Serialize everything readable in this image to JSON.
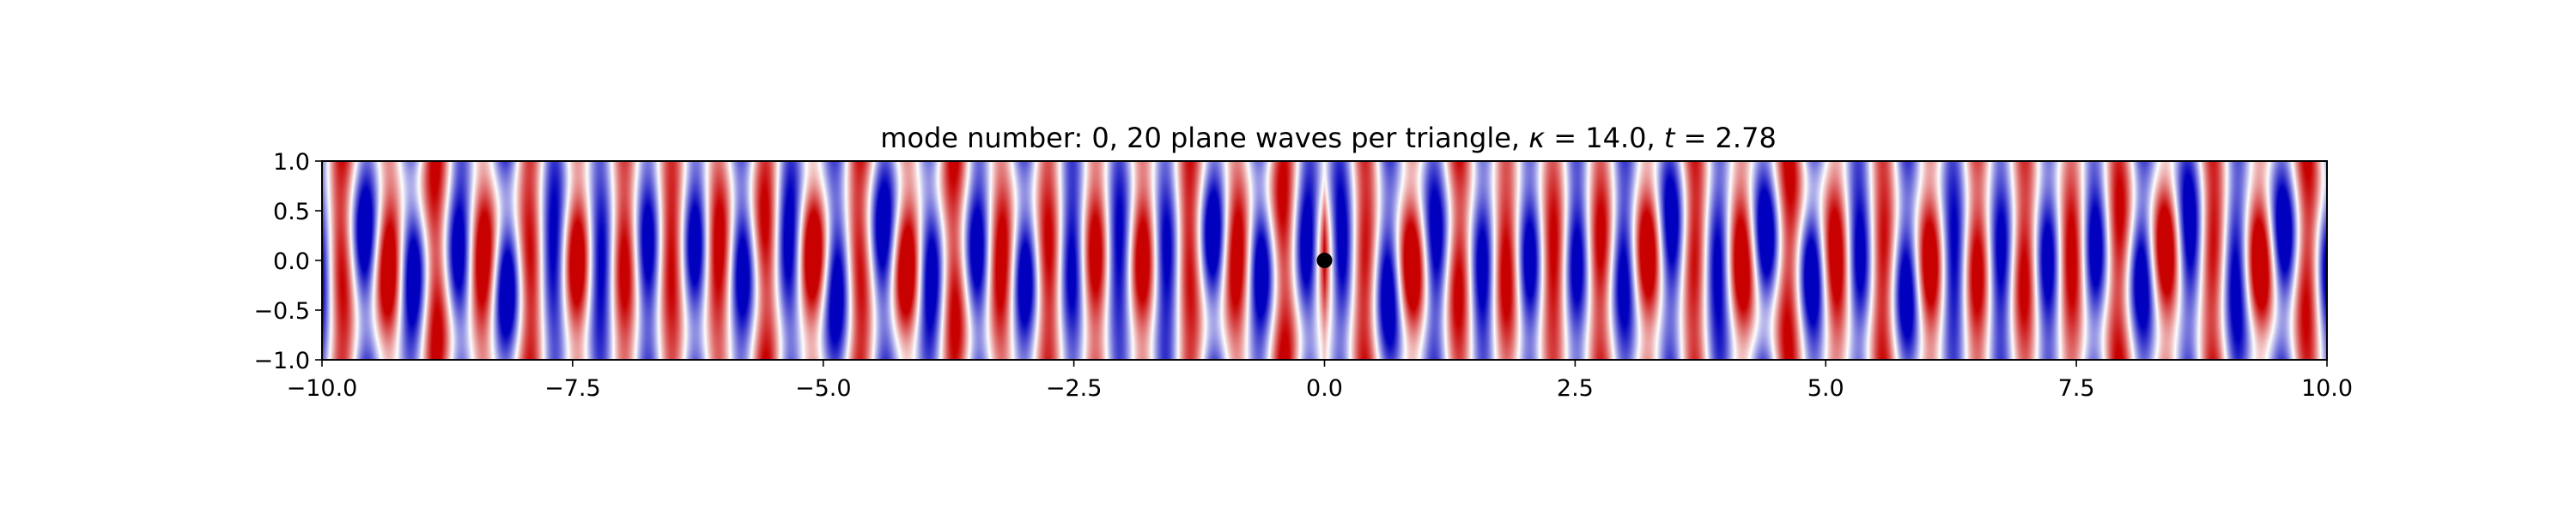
{
  "chart_data": {
    "type": "heatmap",
    "title": "mode number: 0, 20 plane waves per triangle, κ = 14.0, t = 2.78",
    "title_parts": {
      "prefix": "mode number: 0, 20 plane waves per triangle, ",
      "kappa_symbol": "κ",
      "kappa_value": "14.0",
      "t_symbol": "t",
      "t_value": "2.78"
    },
    "xlabel": "",
    "ylabel": "",
    "xlim": [
      -10.0,
      10.0
    ],
    "ylim": [
      -1.0,
      1.0
    ],
    "x_ticks": [
      -10.0,
      -7.5,
      -5.0,
      -2.5,
      0.0,
      2.5,
      5.0,
      7.5,
      10.0
    ],
    "x_tick_labels": [
      "−10.0",
      "−7.5",
      "−5.0",
      "−2.5",
      "0.0",
      "2.5",
      "5.0",
      "7.5",
      "10.0"
    ],
    "y_ticks": [
      -1.0,
      -0.5,
      0.0,
      0.5,
      1.0
    ],
    "y_tick_labels": [
      "−1.0",
      "−0.5",
      "0.0",
      "0.5",
      "1.0"
    ],
    "colormap": "bwr",
    "colors": {
      "positive": "#d40000",
      "negative": "#0000c8",
      "zero": "#ffffff",
      "marker": "#000000"
    },
    "field": {
      "wavenumber": 14.0,
      "time": 2.78,
      "description_hidden": true
    },
    "marker": {
      "x": 0.0,
      "y": 0.0,
      "shape": "circle"
    },
    "grid": false,
    "legend": "none"
  }
}
